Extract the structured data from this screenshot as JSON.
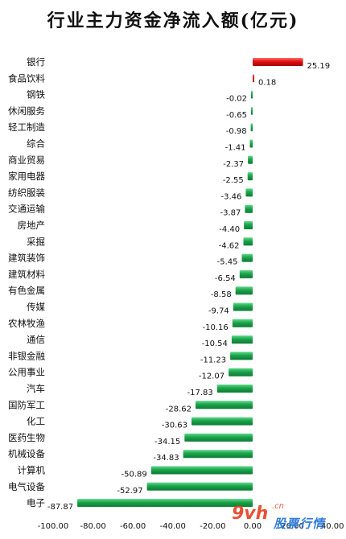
{
  "chart_data": {
    "type": "bar",
    "orientation": "horizontal",
    "title": "行业主力资金净流入额(亿元)",
    "categories": [
      "银行",
      "食品饮料",
      "钢铁",
      "休闲服务",
      "轻工制造",
      "综合",
      "商业贸易",
      "家用电器",
      "纺织服装",
      "交通运输",
      "房地产",
      "采掘",
      "建筑装饰",
      "建筑材料",
      "有色金属",
      "传媒",
      "农林牧渔",
      "通信",
      "非银金融",
      "公用事业",
      "汽车",
      "国防军工",
      "化工",
      "医药生物",
      "机械设备",
      "计算机",
      "电气设备",
      "电子"
    ],
    "values": [
      25.19,
      0.18,
      -0.02,
      -0.65,
      -0.98,
      -1.41,
      -2.37,
      -2.55,
      -3.46,
      -3.87,
      -4.4,
      -4.62,
      -5.45,
      -6.54,
      -8.58,
      -9.74,
      -10.16,
      -10.54,
      -11.23,
      -12.07,
      -17.83,
      -28.62,
      -30.63,
      -34.15,
      -34.83,
      -50.89,
      -52.97,
      -87.87
    ],
    "value_labels": [
      "25.19",
      "0.18",
      "-0.02",
      "-0.65",
      "-0.98",
      "-1.41",
      "-2.37",
      "-2.55",
      "-3.46",
      "-3.87",
      "-4.40",
      "-4.62",
      "-5.45",
      "-6.54",
      "-8.58",
      "-9.74",
      "-10.16",
      "-10.54",
      "-11.23",
      "-12.07",
      "-17.83",
      "-28.62",
      "-30.63",
      "-34.15",
      "-34.83",
      "-50.89",
      "-52.97",
      "-87.87"
    ],
    "xticks": [
      "-100.00",
      "-80.00",
      "-60.00",
      "-40.00",
      "-20.00",
      "0.00",
      "20.00",
      "40.00"
    ],
    "xlim": [
      -100,
      40
    ],
    "colors": {
      "positive": "#e01010",
      "negative": "#1aa34a"
    },
    "grid": false
  },
  "watermark": {
    "site": "9vh",
    "tld": ".cn",
    "name": "股票行情"
  }
}
